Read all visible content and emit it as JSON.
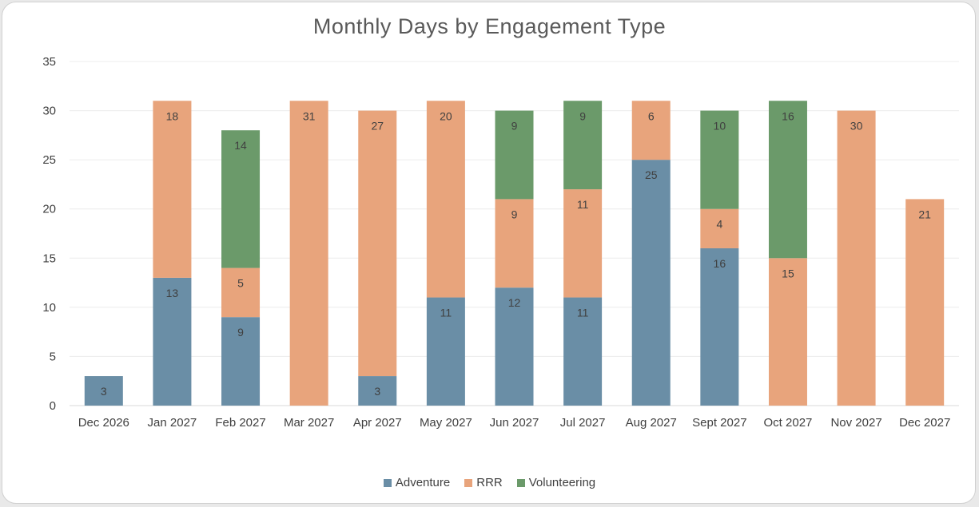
{
  "chart_data": {
    "type": "bar",
    "stacked": true,
    "title": "Monthly Days by Engagement Type",
    "categories": [
      "Dec 2026",
      "Jan 2027",
      "Feb 2027",
      "Mar 2027",
      "Apr 2027",
      "May 2027",
      "Jun 2027",
      "Jul 2027",
      "Aug 2027",
      "Sept 2027",
      "Oct 2027",
      "Nov 2027",
      "Dec 2027"
    ],
    "series": [
      {
        "name": "Adventure",
        "color": "#6a8ea6",
        "values": [
          3,
          13,
          9,
          0,
          3,
          11,
          12,
          11,
          25,
          16,
          0,
          0,
          0
        ]
      },
      {
        "name": "RRR",
        "color": "#e8a47c",
        "values": [
          0,
          18,
          5,
          31,
          27,
          20,
          9,
          11,
          6,
          4,
          15,
          30,
          21
        ]
      },
      {
        "name": "Volunteering",
        "color": "#6b9a6a",
        "values": [
          0,
          0,
          14,
          0,
          0,
          0,
          9,
          9,
          0,
          10,
          16,
          0,
          0
        ]
      }
    ],
    "ylim": [
      0,
      35
    ],
    "yticks": [
      0,
      5,
      10,
      15,
      20,
      25,
      30,
      35
    ],
    "grid": true,
    "legend_position": "bottom"
  }
}
